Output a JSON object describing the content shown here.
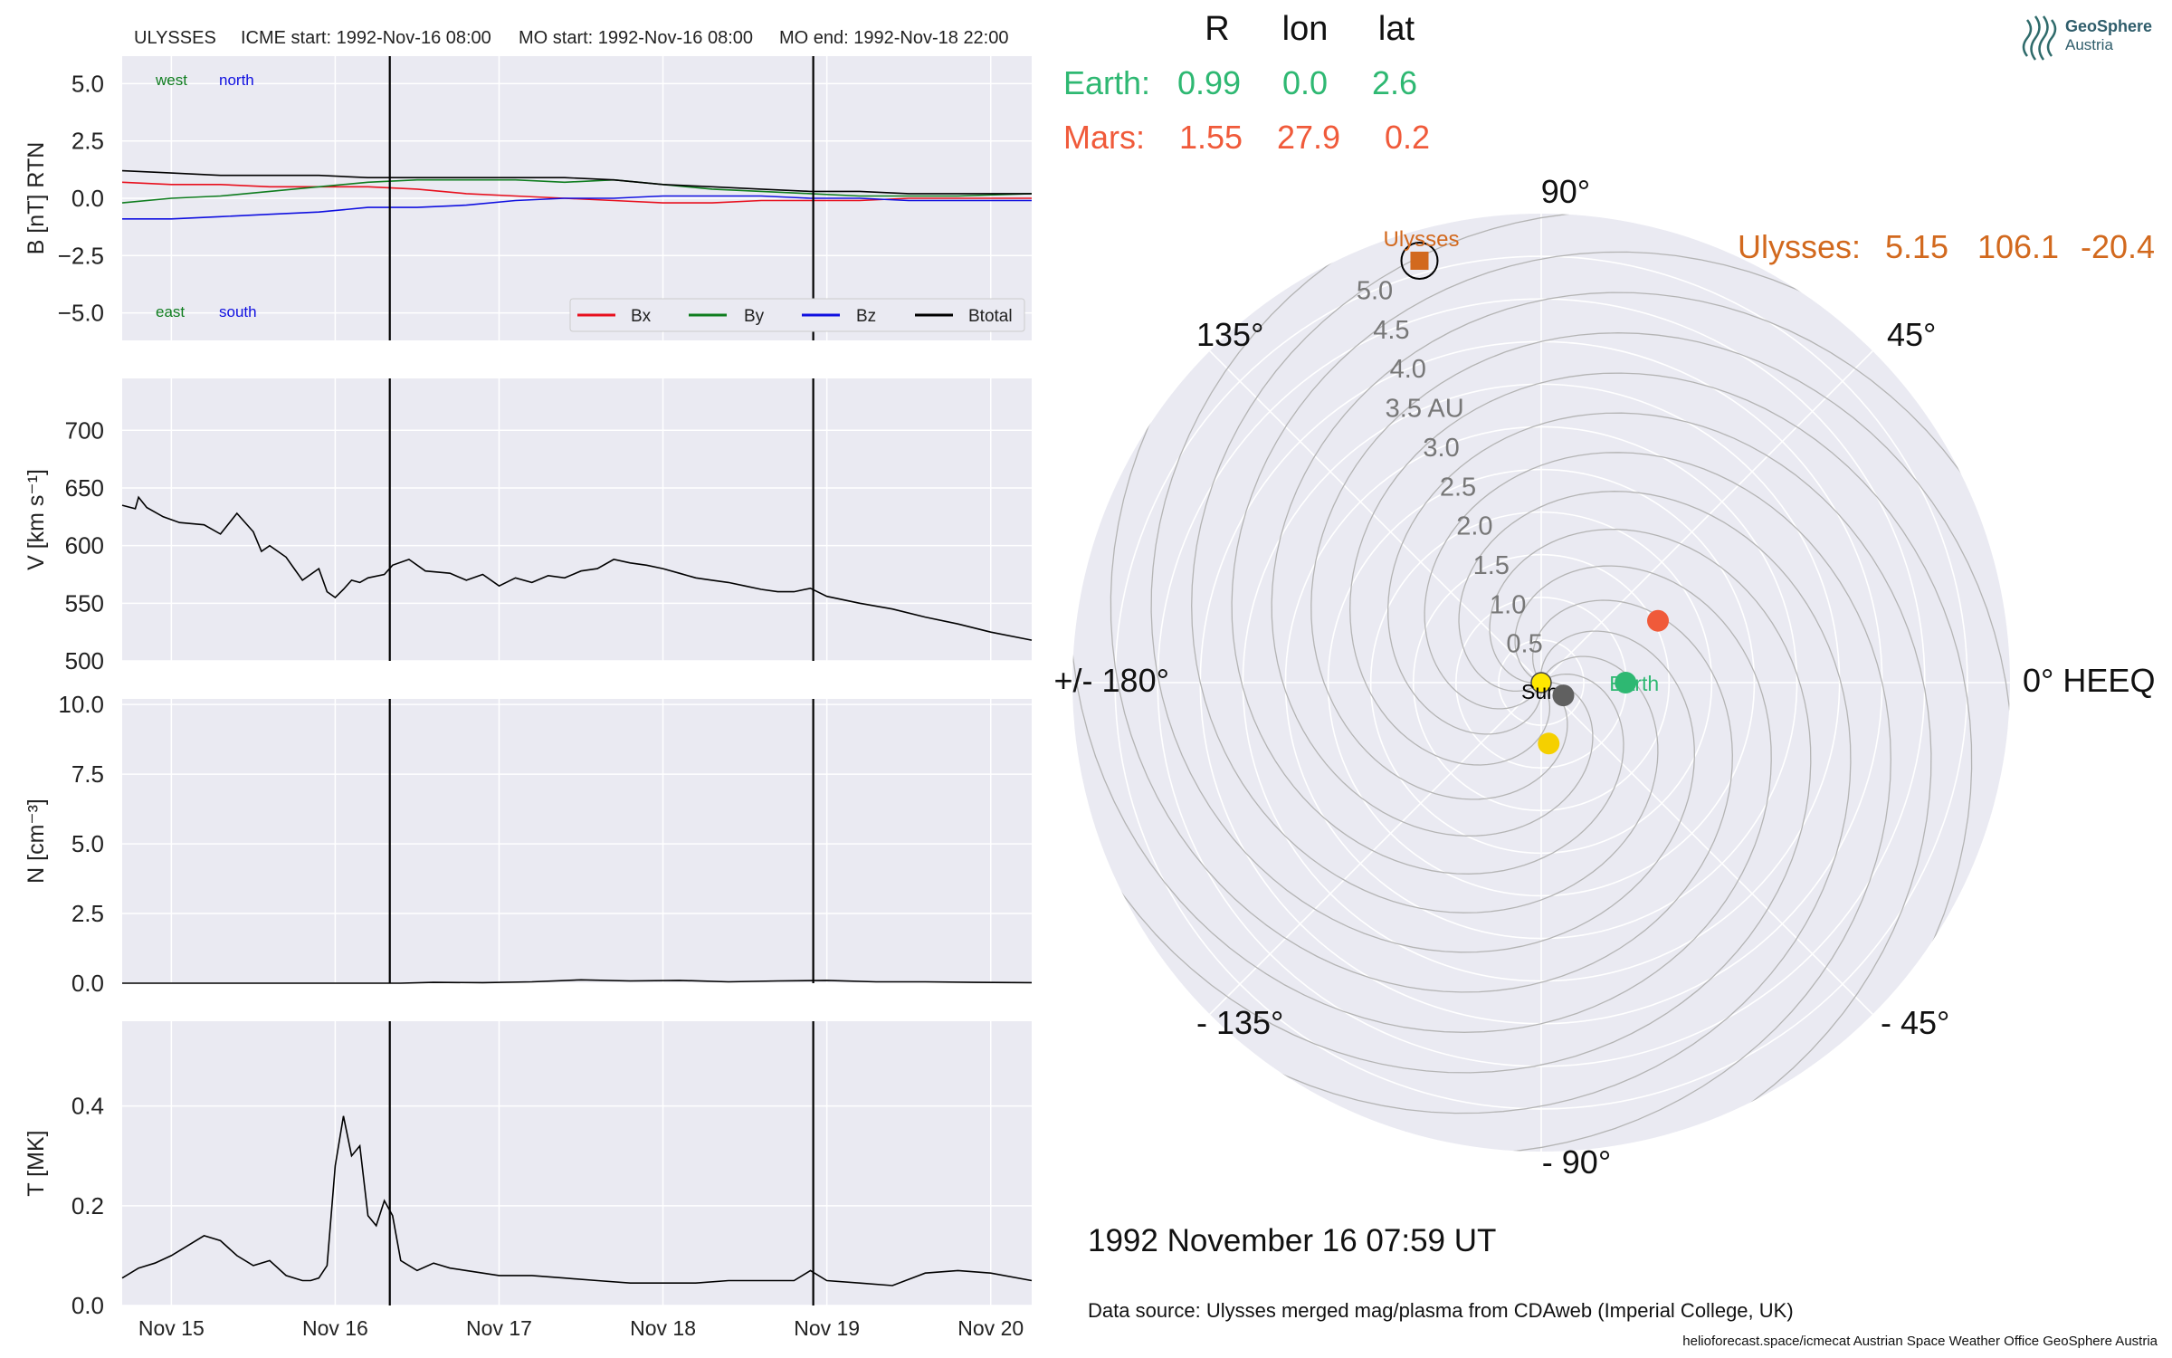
{
  "header": {
    "spacecraft": "ULYSSES",
    "icme_start": "ICME start: 1992-Nov-16 08:00",
    "mo_start": "MO start: 1992-Nov-16 08:00",
    "mo_end": "MO end: 1992-Nov-18 22:00"
  },
  "annotations": {
    "west": "west",
    "north": "north",
    "east": "east",
    "south": "south"
  },
  "position_table": {
    "headers": [
      "R",
      "lon",
      "lat"
    ],
    "earth": {
      "label": "Earth:",
      "r": "0.99",
      "lon": "0.0",
      "lat": "2.6"
    },
    "mars": {
      "label": "Mars:",
      "r": "1.55",
      "lon": "27.9",
      "lat": "0.2"
    },
    "ulysses": {
      "label": "Ulysses:",
      "r": "5.15",
      "lon": "106.1",
      "lat": "-20.4"
    }
  },
  "logo": {
    "line1": "GeoSphere",
    "line2": "Austria"
  },
  "timestamp": "1992 November 16  07:59 UT",
  "data_source": "Data source: Ulysses merged mag/plasma from CDAweb (Imperial College, UK)",
  "footer": "helioforecast.space/icmecat   Austrian Space Weather Office   GeoSphere Austria",
  "colors": {
    "panel_bg": "#eaeaf2",
    "grid": "#ffffff",
    "bx": "#e8101e",
    "by": "#0f7d1f",
    "bz": "#1010e0",
    "btotal": "#000000",
    "earth": "#2eb872",
    "mars": "#f05a3a",
    "ulysses": "#d2691e",
    "sun": "#ffe800",
    "mercury": "#606060",
    "venus": "#f5d000",
    "spiral": "#b4b4b4"
  },
  "chart_data": [
    {
      "type": "line",
      "ylabel": "B [nT] RTN",
      "ylim": [
        -6.2,
        6.2
      ],
      "yticks": [
        "5.0",
        "2.5",
        "0.0",
        "−2.5",
        "−5.0"
      ],
      "ytick_values": [
        5,
        2.5,
        0,
        -2.5,
        -5
      ],
      "xlim": [
        14.7,
        20.25
      ],
      "event_lines_x": [
        16.333,
        18.917
      ],
      "legend": "lower-right",
      "series": [
        {
          "name": "Bx",
          "x": [
            14.7,
            15.0,
            15.3,
            15.6,
            15.9,
            16.2,
            16.5,
            16.8,
            17.1,
            17.4,
            17.7,
            18.0,
            18.3,
            18.6,
            18.9,
            19.2,
            19.5,
            19.8,
            20.25
          ],
          "values": [
            0.7,
            0.6,
            0.6,
            0.5,
            0.5,
            0.5,
            0.4,
            0.2,
            0.1,
            0.0,
            -0.1,
            -0.2,
            -0.2,
            -0.1,
            -0.1,
            -0.1,
            0.0,
            0.0,
            0.0
          ]
        },
        {
          "name": "By",
          "x": [
            14.7,
            15.0,
            15.3,
            15.6,
            15.9,
            16.2,
            16.5,
            16.8,
            17.1,
            17.4,
            17.7,
            18.0,
            18.3,
            18.6,
            18.9,
            19.2,
            19.5,
            19.8,
            20.25
          ],
          "values": [
            -0.2,
            0.0,
            0.1,
            0.3,
            0.5,
            0.7,
            0.8,
            0.8,
            0.8,
            0.7,
            0.8,
            0.6,
            0.4,
            0.3,
            0.2,
            0.1,
            0.1,
            0.1,
            0.2
          ]
        },
        {
          "name": "Bz",
          "x": [
            14.7,
            15.0,
            15.3,
            15.6,
            15.9,
            16.2,
            16.5,
            16.8,
            17.1,
            17.4,
            17.7,
            18.0,
            18.3,
            18.6,
            18.9,
            19.2,
            19.5,
            19.8,
            20.25
          ],
          "values": [
            -0.9,
            -0.9,
            -0.8,
            -0.7,
            -0.6,
            -0.4,
            -0.4,
            -0.3,
            -0.1,
            0.0,
            0.0,
            0.1,
            0.1,
            0.1,
            0.0,
            0.0,
            -0.1,
            -0.1,
            -0.1
          ]
        },
        {
          "name": "Btotal",
          "x": [
            14.7,
            15.0,
            15.3,
            15.6,
            15.9,
            16.2,
            16.5,
            16.8,
            17.1,
            17.4,
            17.7,
            18.0,
            18.3,
            18.6,
            18.9,
            19.2,
            19.5,
            19.8,
            20.25
          ],
          "values": [
            1.2,
            1.1,
            1.0,
            1.0,
            1.0,
            0.9,
            0.9,
            0.9,
            0.9,
            0.9,
            0.8,
            0.6,
            0.5,
            0.4,
            0.3,
            0.3,
            0.2,
            0.2,
            0.2
          ]
        }
      ]
    },
    {
      "type": "line",
      "ylabel": "V [km s⁻¹]",
      "ylim": [
        500,
        745
      ],
      "yticks": [
        "700",
        "650",
        "600",
        "550",
        "500"
      ],
      "ytick_values": [
        700,
        650,
        600,
        550,
        500
      ],
      "xlim": [
        14.7,
        20.25
      ],
      "event_lines_x": [
        16.333,
        18.917
      ],
      "series": [
        {
          "name": "",
          "x": [
            14.7,
            14.78,
            14.8,
            14.85,
            14.95,
            15.05,
            15.2,
            15.3,
            15.4,
            15.5,
            15.55,
            15.6,
            15.7,
            15.75,
            15.8,
            15.9,
            15.95,
            16.0,
            16.05,
            16.1,
            16.15,
            16.2,
            16.3,
            16.35,
            16.45,
            16.55,
            16.7,
            16.8,
            16.9,
            17.0,
            17.1,
            17.2,
            17.3,
            17.4,
            17.5,
            17.6,
            17.7,
            17.8,
            17.9,
            18.0,
            18.1,
            18.2,
            18.3,
            18.4,
            18.5,
            18.6,
            18.7,
            18.8,
            18.9,
            19.0,
            19.2,
            19.4,
            19.6,
            19.8,
            20.0,
            20.25
          ],
          "values": [
            635,
            632,
            642,
            633,
            625,
            620,
            618,
            610,
            628,
            612,
            595,
            600,
            590,
            580,
            570,
            580,
            560,
            555,
            562,
            570,
            568,
            572,
            575,
            583,
            588,
            578,
            576,
            570,
            575,
            565,
            572,
            568,
            574,
            572,
            578,
            580,
            588,
            585,
            583,
            580,
            576,
            572,
            570,
            568,
            565,
            562,
            560,
            560,
            563,
            556,
            550,
            545,
            538,
            532,
            525,
            518
          ]
        }
      ]
    },
    {
      "type": "line",
      "ylabel": "N [cm⁻³]",
      "ylim": [
        0,
        10.2
      ],
      "yticks": [
        "10.0",
        "7.5",
        "5.0",
        "2.5",
        "0.0"
      ],
      "ytick_values": [
        10,
        7.5,
        5,
        2.5,
        0
      ],
      "xlim": [
        14.7,
        20.25
      ],
      "event_lines_x": [
        16.333,
        18.917
      ],
      "series": [
        {
          "name": "",
          "x": [
            14.7,
            15.2,
            15.7,
            16.2,
            16.4,
            16.6,
            16.9,
            17.2,
            17.5,
            17.8,
            18.1,
            18.4,
            18.7,
            19.0,
            19.3,
            19.6,
            19.9,
            20.25
          ],
          "values": [
            0.0,
            0.0,
            0.0,
            0.0,
            0.0,
            0.03,
            0.02,
            0.05,
            0.12,
            0.08,
            0.1,
            0.05,
            0.08,
            0.1,
            0.05,
            0.05,
            0.03,
            0.02
          ]
        }
      ]
    },
    {
      "type": "line",
      "ylabel": "T [MK]",
      "ylim": [
        0,
        0.57
      ],
      "yticks": [
        "0.4",
        "0.2",
        "0.0"
      ],
      "ytick_values": [
        0.4,
        0.2,
        0.0
      ],
      "xlim": [
        14.7,
        20.25
      ],
      "event_lines_x": [
        16.333,
        18.917
      ],
      "x_ticklabels": [
        "Nov 15",
        "Nov 16",
        "Nov 17",
        "Nov 18",
        "Nov 19",
        "Nov 20"
      ],
      "x_tickvalues": [
        15,
        16,
        17,
        18,
        19,
        20
      ],
      "series": [
        {
          "name": "",
          "x": [
            14.7,
            14.8,
            14.9,
            15.0,
            15.1,
            15.2,
            15.3,
            15.4,
            15.5,
            15.6,
            15.7,
            15.8,
            15.85,
            15.9,
            15.95,
            16.0,
            16.05,
            16.1,
            16.15,
            16.2,
            16.25,
            16.3,
            16.35,
            16.4,
            16.5,
            16.6,
            16.7,
            16.8,
            16.9,
            17.0,
            17.2,
            17.4,
            17.6,
            17.8,
            18.0,
            18.2,
            18.4,
            18.6,
            18.8,
            18.9,
            19.0,
            19.2,
            19.4,
            19.6,
            19.8,
            20.0,
            20.25
          ],
          "values": [
            0.055,
            0.075,
            0.085,
            0.1,
            0.12,
            0.14,
            0.13,
            0.1,
            0.08,
            0.09,
            0.06,
            0.05,
            0.05,
            0.055,
            0.08,
            0.28,
            0.38,
            0.3,
            0.32,
            0.18,
            0.16,
            0.21,
            0.18,
            0.09,
            0.07,
            0.085,
            0.075,
            0.07,
            0.065,
            0.06,
            0.06,
            0.055,
            0.05,
            0.045,
            0.045,
            0.045,
            0.05,
            0.05,
            0.05,
            0.07,
            0.05,
            0.045,
            0.04,
            0.065,
            0.07,
            0.065,
            0.05
          ]
        }
      ]
    },
    {
      "type": "scatter",
      "projection": "polar",
      "angle_labels": [
        "90°",
        "45°",
        "0° HEEQ",
        "- 45°",
        "- 90°",
        "- 135°",
        "+/- 180°",
        "135°"
      ],
      "radial_labels": [
        "0.5",
        "1.0",
        "1.5",
        "2.0",
        "2.5",
        "3.0",
        "3.5 AU",
        "4.0",
        "4.5",
        "5.0"
      ],
      "radial_values": [
        0.5,
        1.0,
        1.5,
        2.0,
        2.5,
        3.0,
        3.5,
        4.0,
        4.5,
        5.0
      ],
      "rlim": [
        0,
        5.5
      ],
      "points": [
        {
          "name": "Sun",
          "r": 0.0,
          "lon": 0.0,
          "label": "Sun"
        },
        {
          "name": "Earth",
          "r": 0.99,
          "lon": 0.0,
          "label": "Earth"
        },
        {
          "name": "Mars",
          "r": 1.55,
          "lon": 27.9,
          "label": ""
        },
        {
          "name": "Ulysses",
          "r": 5.15,
          "lon": 106.1,
          "label": "Ulysses"
        },
        {
          "name": "Mercury",
          "r": 0.3,
          "lon": -30.0,
          "label": ""
        },
        {
          "name": "Venus",
          "r": 0.72,
          "lon": -83.0,
          "label": ""
        }
      ]
    }
  ]
}
